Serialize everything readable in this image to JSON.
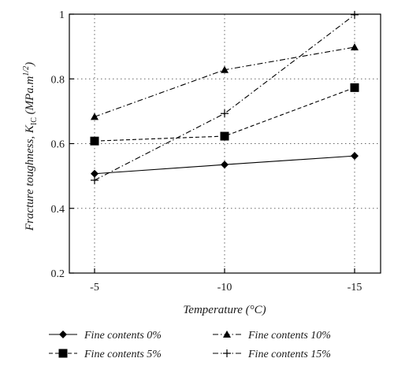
{
  "chart_data": {
    "type": "line",
    "xlabel": "Temperature (°C)",
    "ylabel": "Fracture toughness, K",
    "ylabel_sub": "IC",
    "ylabel_unit_open": " (MPa.m",
    "ylabel_unit_sup": "1/2",
    "ylabel_unit_close": ")",
    "categories": [
      "-5",
      "-10",
      "-15"
    ],
    "ylim": [
      0.2,
      1.0
    ],
    "yticks": [
      0.2,
      0.4,
      0.6,
      0.8,
      1.0
    ],
    "ytick_labels": [
      "0.2",
      "0.4",
      "0.6",
      "0.8",
      "1"
    ],
    "grid": true,
    "legend_position": "bottom",
    "series": [
      {
        "name": "Fine contents 0%",
        "marker": "diamond",
        "line_style": "solid",
        "values": [
          0.507,
          0.535,
          0.562
        ]
      },
      {
        "name": "Fine contents 5%",
        "marker": "square",
        "line_style": "dashed",
        "values": [
          0.608,
          0.623,
          0.773
        ]
      },
      {
        "name": "Fine contents 10%",
        "marker": "triangle",
        "line_style": "dash-dot",
        "values": [
          0.683,
          0.828,
          0.898
        ]
      },
      {
        "name": "Fine contents 15%",
        "marker": "plus",
        "line_style": "dash-dot",
        "values": [
          0.487,
          0.693,
          0.998
        ]
      }
    ]
  }
}
